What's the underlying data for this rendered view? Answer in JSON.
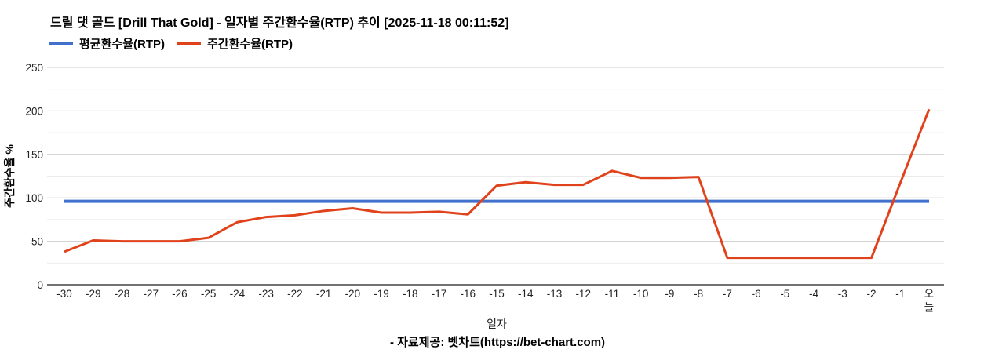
{
  "header": {
    "title": "드릴 댓 골드 [Drill That Gold] - 일자별 주간환수율(RTP) 추이 [2025-11-18 00:11:52]"
  },
  "legend": {
    "items": [
      {
        "label": "평균환수율(RTP)",
        "color": "#4171cd"
      },
      {
        "label": "주간환수율(RTP)",
        "color": "#e0431c"
      }
    ]
  },
  "footer": {
    "text": "- 자료제공: 벳차트(https://bet-chart.com)"
  },
  "chart_data": {
    "type": "line",
    "title": "드릴 댓 골드 [Drill That Gold] - 일자별 주간환수율(RTP) 추이 [2025-11-18 00:11:52]",
    "xlabel": "일자",
    "ylabel": "주간환수율 %",
    "ylim": [
      0,
      250
    ],
    "yticks_major": [
      0,
      50,
      100,
      150,
      200,
      250
    ],
    "yticks_minor": [
      25,
      75,
      125,
      175,
      225
    ],
    "grid": true,
    "legend_position": "top",
    "categories": [
      "-30",
      "-29",
      "-28",
      "-27",
      "-26",
      "-25",
      "-24",
      "-23",
      "-22",
      "-21",
      "-20",
      "-19",
      "-18",
      "-17",
      "-16",
      "-15",
      "-14",
      "-13",
      "-12",
      "-11",
      "-10",
      "-9",
      "-8",
      "-7",
      "-6",
      "-5",
      "-4",
      "-3",
      "-2",
      "-1",
      "오늘"
    ],
    "series": [
      {
        "name": "평균환수율(RTP)",
        "color": "#4171cd",
        "values": [
          96,
          96,
          96,
          96,
          96,
          96,
          96,
          96,
          96,
          96,
          96,
          96,
          96,
          96,
          96,
          96,
          96,
          96,
          96,
          96,
          96,
          96,
          96,
          96,
          96,
          96,
          96,
          96,
          96,
          96,
          96
        ]
      },
      {
        "name": "주간환수율(RTP)",
        "color": "#e0431c",
        "values": [
          38,
          51,
          50,
          50,
          50,
          54,
          72,
          78,
          80,
          85,
          88,
          83,
          83,
          84,
          81,
          114,
          118,
          115,
          115,
          131,
          123,
          123,
          124,
          31,
          31,
          31,
          31,
          31,
          31,
          117,
          202
        ]
      }
    ]
  }
}
